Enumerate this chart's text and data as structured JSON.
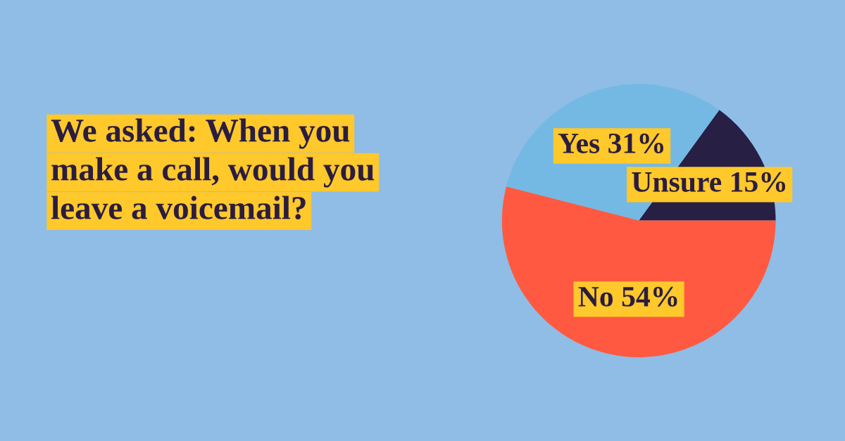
{
  "chart_data": {
    "type": "pie",
    "title": "We asked: When you\nmake a call, would you\nleave a voicemail?",
    "categories": [
      "Unsure",
      "Yes",
      "No"
    ],
    "values": [
      15,
      31,
      54
    ],
    "value_labels": [
      "15%",
      "31%",
      "54%"
    ],
    "colors": [
      "#271f44",
      "#74b9e4",
      "#ff5a41"
    ],
    "legend": false
  }
}
